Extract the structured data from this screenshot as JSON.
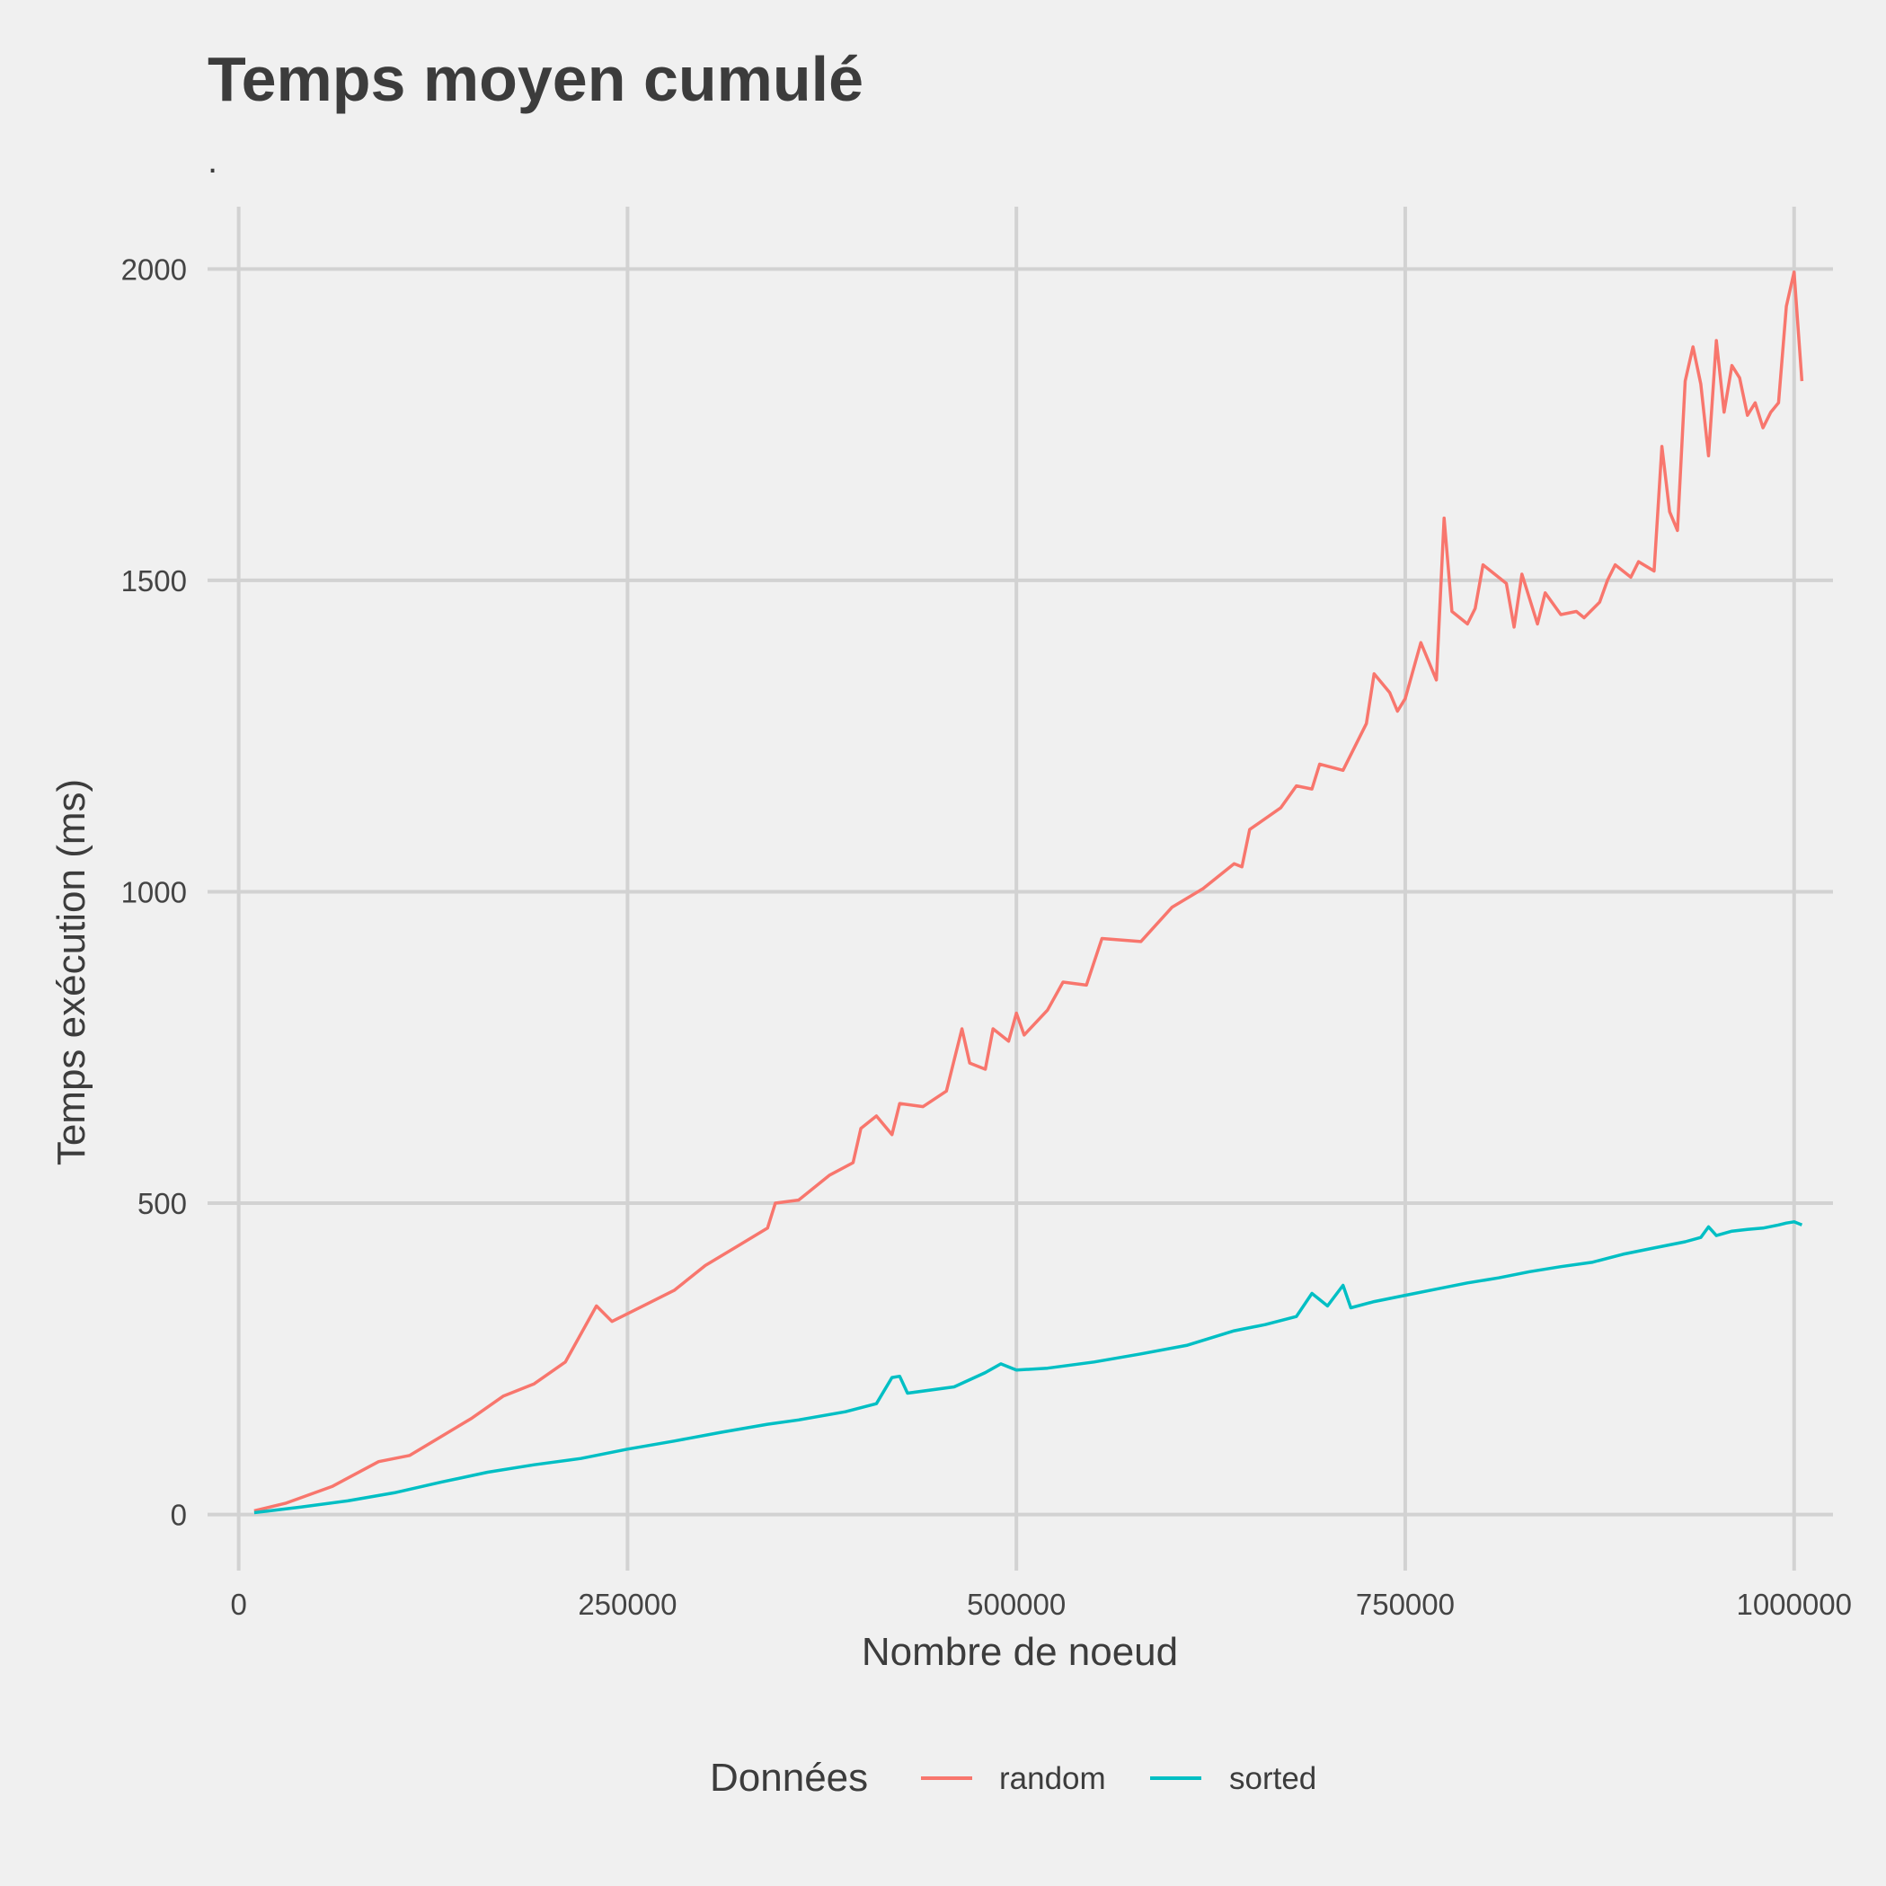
{
  "chart_data": {
    "type": "line",
    "title": "Temps moyen cumulé",
    "subtitle": ".",
    "xlabel": "Nombre de noeud",
    "ylabel": "Temps exécution (ms)",
    "xlim": [
      -20000,
      1025000
    ],
    "ylim": [
      -90,
      2100
    ],
    "x_ticks": [
      0,
      250000,
      500000,
      750000,
      1000000
    ],
    "x_tick_labels": [
      "0",
      "250000",
      "500000",
      "750000",
      "1000000"
    ],
    "y_ticks": [
      0,
      500,
      1000,
      1500,
      2000
    ],
    "y_tick_labels": [
      "0",
      "500",
      "1000",
      "1500",
      "2000"
    ],
    "grid": true,
    "legend": {
      "title": "Données",
      "position": "bottom"
    },
    "series": [
      {
        "name": "random",
        "color": "#f8766d",
        "points": [
          [
            10000,
            6
          ],
          [
            30000,
            18
          ],
          [
            60000,
            45
          ],
          [
            90000,
            85
          ],
          [
            110000,
            95
          ],
          [
            130000,
            125
          ],
          [
            150000,
            155
          ],
          [
            170000,
            190
          ],
          [
            190000,
            210
          ],
          [
            210000,
            245
          ],
          [
            230000,
            335
          ],
          [
            240000,
            310
          ],
          [
            260000,
            335
          ],
          [
            280000,
            360
          ],
          [
            300000,
            400
          ],
          [
            320000,
            430
          ],
          [
            340000,
            460
          ],
          [
            345000,
            500
          ],
          [
            360000,
            505
          ],
          [
            380000,
            545
          ],
          [
            395000,
            565
          ],
          [
            400000,
            620
          ],
          [
            410000,
            640
          ],
          [
            420000,
            610
          ],
          [
            425000,
            660
          ],
          [
            440000,
            655
          ],
          [
            455000,
            680
          ],
          [
            465000,
            780
          ],
          [
            470000,
            725
          ],
          [
            480000,
            715
          ],
          [
            485000,
            780
          ],
          [
            495000,
            760
          ],
          [
            500000,
            805
          ],
          [
            505000,
            770
          ],
          [
            520000,
            810
          ],
          [
            530000,
            855
          ],
          [
            545000,
            850
          ],
          [
            555000,
            925
          ],
          [
            580000,
            920
          ],
          [
            600000,
            975
          ],
          [
            620000,
            1005
          ],
          [
            640000,
            1045
          ],
          [
            645000,
            1040
          ],
          [
            650000,
            1100
          ],
          [
            670000,
            1135
          ],
          [
            680000,
            1170
          ],
          [
            690000,
            1165
          ],
          [
            695000,
            1205
          ],
          [
            710000,
            1195
          ],
          [
            725000,
            1270
          ],
          [
            730000,
            1350
          ],
          [
            740000,
            1320
          ],
          [
            745000,
            1290
          ],
          [
            750000,
            1310
          ],
          [
            760000,
            1400
          ],
          [
            770000,
            1340
          ],
          [
            775000,
            1600
          ],
          [
            780000,
            1450
          ],
          [
            790000,
            1430
          ],
          [
            795000,
            1455
          ],
          [
            800000,
            1525
          ],
          [
            815000,
            1495
          ],
          [
            820000,
            1425
          ],
          [
            825000,
            1510
          ],
          [
            835000,
            1430
          ],
          [
            840000,
            1480
          ],
          [
            850000,
            1445
          ],
          [
            860000,
            1450
          ],
          [
            865000,
            1440
          ],
          [
            875000,
            1465
          ],
          [
            880000,
            1500
          ],
          [
            885000,
            1525
          ],
          [
            895000,
            1505
          ],
          [
            900000,
            1530
          ],
          [
            910000,
            1515
          ],
          [
            915000,
            1715
          ],
          [
            920000,
            1610
          ],
          [
            925000,
            1580
          ],
          [
            930000,
            1820
          ],
          [
            935000,
            1875
          ],
          [
            940000,
            1815
          ],
          [
            945000,
            1700
          ],
          [
            950000,
            1885
          ],
          [
            955000,
            1770
          ],
          [
            960000,
            1845
          ],
          [
            965000,
            1825
          ],
          [
            970000,
            1765
          ],
          [
            975000,
            1785
          ],
          [
            980000,
            1745
          ],
          [
            985000,
            1770
          ],
          [
            990000,
            1785
          ],
          [
            995000,
            1940
          ],
          [
            1000000,
            1995
          ],
          [
            1005000,
            1820
          ]
        ]
      },
      {
        "name": "sorted",
        "color": "#00bfc4",
        "points": [
          [
            10000,
            3
          ],
          [
            40000,
            12
          ],
          [
            70000,
            22
          ],
          [
            100000,
            35
          ],
          [
            130000,
            52
          ],
          [
            160000,
            68
          ],
          [
            190000,
            80
          ],
          [
            220000,
            90
          ],
          [
            250000,
            105
          ],
          [
            280000,
            118
          ],
          [
            310000,
            132
          ],
          [
            340000,
            145
          ],
          [
            360000,
            152
          ],
          [
            390000,
            165
          ],
          [
            410000,
            178
          ],
          [
            420000,
            220
          ],
          [
            425000,
            222
          ],
          [
            430000,
            195
          ],
          [
            460000,
            205
          ],
          [
            480000,
            228
          ],
          [
            490000,
            242
          ],
          [
            500000,
            232
          ],
          [
            520000,
            235
          ],
          [
            550000,
            245
          ],
          [
            580000,
            258
          ],
          [
            610000,
            272
          ],
          [
            640000,
            295
          ],
          [
            660000,
            305
          ],
          [
            680000,
            318
          ],
          [
            690000,
            355
          ],
          [
            700000,
            335
          ],
          [
            710000,
            368
          ],
          [
            715000,
            332
          ],
          [
            730000,
            342
          ],
          [
            750000,
            352
          ],
          [
            770000,
            362
          ],
          [
            790000,
            372
          ],
          [
            810000,
            380
          ],
          [
            830000,
            390
          ],
          [
            850000,
            398
          ],
          [
            870000,
            405
          ],
          [
            890000,
            418
          ],
          [
            910000,
            428
          ],
          [
            930000,
            438
          ],
          [
            940000,
            445
          ],
          [
            945000,
            462
          ],
          [
            950000,
            448
          ],
          [
            960000,
            455
          ],
          [
            970000,
            458
          ],
          [
            980000,
            460
          ],
          [
            990000,
            465
          ],
          [
            995000,
            468
          ],
          [
            1000000,
            470
          ],
          [
            1005000,
            465
          ]
        ]
      }
    ]
  }
}
